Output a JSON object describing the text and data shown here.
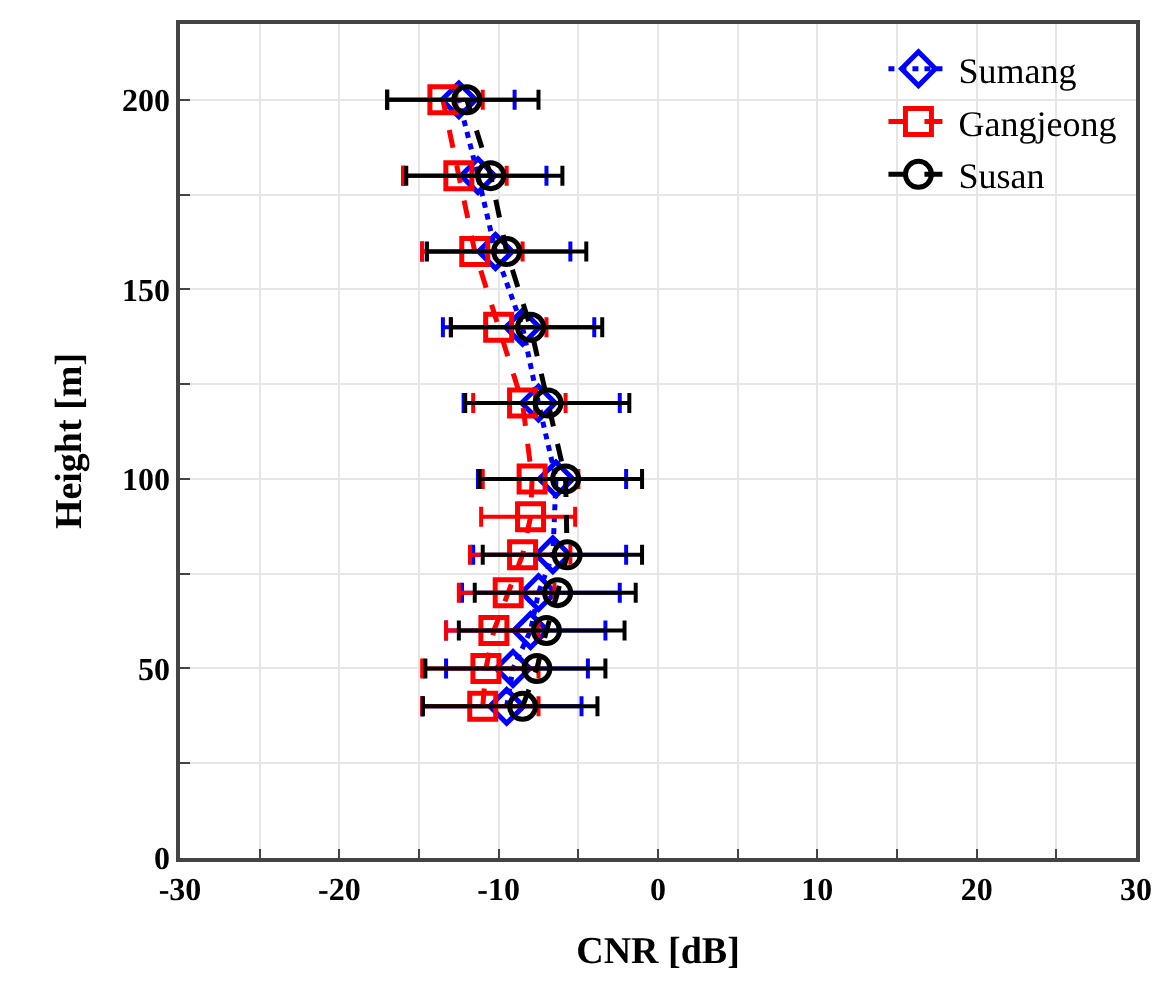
{
  "chart_data": {
    "type": "line",
    "xlabel": "CNR [dB]",
    "ylabel": "Height [m]",
    "series": [
      {
        "name": "Sumang",
        "color": "#0000ff",
        "marker": "diamond",
        "line_style": "dotted",
        "x": [
          -9.5,
          -9.1,
          -8.0,
          -7.5,
          -6.6,
          -6.4,
          -7.5,
          -8.5,
          -10.2,
          -11.3,
          -12.5
        ],
        "values": [
          40,
          50,
          60,
          70,
          80,
          100,
          120,
          140,
          160,
          180,
          200
        ],
        "xerrors": [
          [
            -14.8,
            -4.8
          ],
          [
            -13.3,
            -4.4
          ],
          [
            -13.3,
            -3.3
          ],
          [
            -12.3,
            -2.4
          ],
          [
            -11.6,
            -2.0
          ],
          [
            -11.3,
            -2.0
          ],
          [
            -12.2,
            -2.4
          ],
          [
            -13.5,
            -4.0
          ],
          [
            -14.8,
            -5.5
          ],
          [
            -16.0,
            -7.0
          ],
          [
            -17.0,
            -9.0
          ]
        ]
      },
      {
        "name": "Gangjeong",
        "color": "#ff0000",
        "marker": "square",
        "line_style": "dashed",
        "x": [
          -11.0,
          -10.8,
          -10.3,
          -9.4,
          -8.5,
          -8.0,
          -7.9,
          -8.5,
          -10.0,
          -11.5,
          -12.5,
          -13.5
        ],
        "values": [
          40,
          50,
          60,
          70,
          80,
          90,
          100,
          120,
          140,
          160,
          180,
          200
        ],
        "xerrors": [
          [
            -14.8,
            -7.5
          ],
          [
            -14.8,
            -7.5
          ],
          [
            -13.3,
            -7.5
          ],
          [
            -12.5,
            -6.5
          ],
          [
            -11.8,
            -5.5
          ],
          [
            -11.1,
            -5.2
          ],
          [
            -11.0,
            -5.0
          ],
          [
            -11.6,
            -5.8
          ],
          [
            -13.0,
            -7.0
          ],
          [
            -14.8,
            -8.5
          ],
          [
            -16.0,
            -9.5
          ],
          [
            -17.0,
            -11.0
          ]
        ]
      },
      {
        "name": "Susan",
        "color": "#000000",
        "marker": "circle",
        "line_style": "dashed",
        "x": [
          -8.5,
          -7.6,
          -7.0,
          -6.3,
          -5.7,
          -5.8,
          -6.9,
          -8.0,
          -9.5,
          -10.5,
          -12.0
        ],
        "values": [
          40,
          50,
          60,
          70,
          80,
          100,
          120,
          140,
          160,
          180,
          200
        ],
        "xerrors": [
          [
            -14.75,
            -3.8
          ],
          [
            -14.6,
            -3.3
          ],
          [
            -12.5,
            -2.1
          ],
          [
            -11.5,
            -1.4
          ],
          [
            -11.0,
            -1.0
          ],
          [
            -11.2,
            -1.0
          ],
          [
            -12.1,
            -1.8
          ],
          [
            -13.0,
            -3.5
          ],
          [
            -14.5,
            -4.5
          ],
          [
            -15.8,
            -6.0
          ],
          [
            -17.0,
            -7.5
          ]
        ]
      }
    ],
    "xlim": [
      -30,
      30
    ],
    "xticks": [
      -30,
      {
        "value": -25,
        "label": null
      },
      -20,
      {
        "value": -15,
        "label": null
      },
      -10,
      {
        "value": -5,
        "label": null
      },
      0,
      {
        "value": 5,
        "label": null
      },
      10,
      {
        "value": 15,
        "label": null
      },
      20,
      {
        "value": 25,
        "label": null
      },
      30
    ],
    "ylim": [
      0,
      220
    ],
    "yticks": [
      0,
      {
        "value": 25,
        "label": null
      },
      50,
      {
        "value": 75,
        "label": null
      },
      100,
      {
        "value": 125,
        "label": null
      },
      150,
      {
        "value": 175,
        "label": null
      },
      200
    ],
    "grid": true,
    "legend": "top right"
  }
}
